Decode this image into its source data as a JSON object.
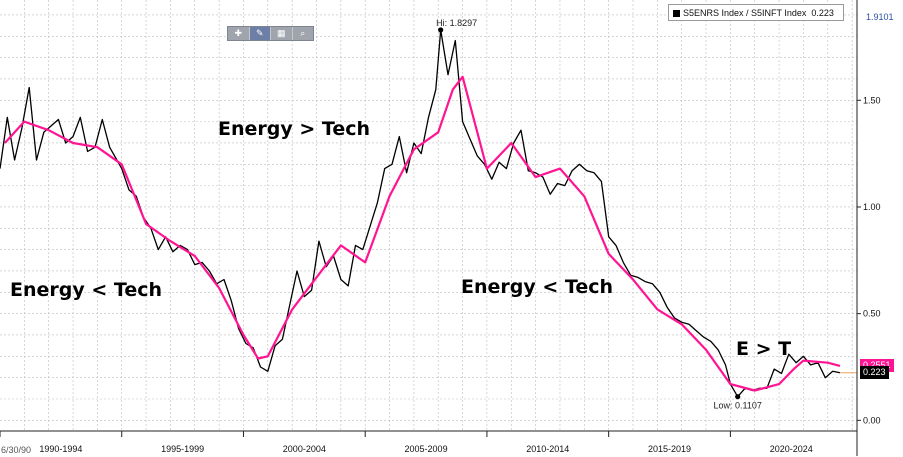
{
  "legend": {
    "label": "S5ENRS Index / S5INFT Index",
    "value": "0.223"
  },
  "toolbar": {
    "icons": [
      "crosshair-icon",
      "pen-icon",
      "grid-icon",
      "zoom-icon"
    ]
  },
  "annotations": {
    "top_left": "Energy > Tech",
    "left": "Energy < Tech",
    "right": "Energy < Tech",
    "recent": "E > T",
    "hi": "Hi: 1.8297",
    "low": "Low: 0.1107"
  },
  "tags": {
    "top": "1.9101",
    "ma": "0.2551",
    "last": "0.223"
  },
  "date_stub": "6/30/90",
  "colors": {
    "ratio": "#000000",
    "moving_average": "#ff1493",
    "last_line": "#f4a460",
    "top_tag": "#2b4f9e"
  },
  "chart_data": {
    "type": "line",
    "x_tick_labels": [
      "1990-1994",
      "1995-1999",
      "2000-2004",
      "2005-2009",
      "2010-2014",
      "2015-2019",
      "2020-2024"
    ],
    "y_tick_labels": [
      "0.00",
      "0.50",
      "1.00",
      "1.50"
    ],
    "xlim": [
      1990.0,
      2025.2
    ],
    "ylim": [
      -0.05,
      1.97
    ],
    "grid": true,
    "y_axis_side": "right",
    "series": [
      {
        "name": "S5ENRS Index / S5INFT Index",
        "x": [
          1990.0,
          1990.3,
          1990.6,
          1990.9,
          1991.2,
          1991.5,
          1991.8,
          1992.1,
          1992.4,
          1992.7,
          1993.0,
          1993.3,
          1993.6,
          1993.9,
          1994.2,
          1994.5,
          1994.8,
          1995.0,
          1995.3,
          1995.6,
          1995.9,
          1996.2,
          1996.5,
          1996.8,
          1997.1,
          1997.4,
          1997.7,
          1998.0,
          1998.3,
          1998.6,
          1998.9,
          1999.2,
          1999.5,
          1999.8,
          2000.1,
          2000.4,
          2000.7,
          2001.0,
          2001.3,
          2001.6,
          2001.9,
          2002.2,
          2002.5,
          2002.8,
          2003.1,
          2003.4,
          2003.7,
          2004.0,
          2004.3,
          2004.6,
          2004.9,
          2005.2,
          2005.5,
          2005.8,
          2006.1,
          2006.4,
          2006.7,
          2007.0,
          2007.3,
          2007.6,
          2007.9,
          2008.1,
          2008.4,
          2008.7,
          2009.0,
          2009.3,
          2009.6,
          2009.9,
          2010.2,
          2010.5,
          2010.8,
          2011.1,
          2011.4,
          2011.7,
          2012.0,
          2012.3,
          2012.6,
          2012.9,
          2013.2,
          2013.5,
          2013.8,
          2014.1,
          2014.4,
          2014.7,
          2015.0,
          2015.3,
          2015.6,
          2015.9,
          2016.2,
          2016.5,
          2016.8,
          2017.1,
          2017.4,
          2017.7,
          2018.0,
          2018.3,
          2018.6,
          2018.9,
          2019.2,
          2019.5,
          2019.8,
          2020.0,
          2020.3,
          2020.6,
          2020.9,
          2021.2,
          2021.5,
          2021.8,
          2022.1,
          2022.4,
          2022.7,
          2023.0,
          2023.3,
          2023.6,
          2023.9,
          2024.2,
          2024.5
        ],
        "values": [
          1.18,
          1.42,
          1.22,
          1.37,
          1.56,
          1.22,
          1.35,
          1.38,
          1.41,
          1.3,
          1.33,
          1.42,
          1.26,
          1.28,
          1.41,
          1.28,
          1.22,
          1.18,
          1.08,
          1.05,
          0.95,
          0.9,
          0.8,
          0.86,
          0.79,
          0.82,
          0.8,
          0.73,
          0.74,
          0.7,
          0.64,
          0.66,
          0.56,
          0.43,
          0.36,
          0.34,
          0.25,
          0.23,
          0.35,
          0.38,
          0.54,
          0.7,
          0.58,
          0.61,
          0.84,
          0.72,
          0.77,
          0.66,
          0.63,
          0.82,
          0.8,
          0.91,
          1.02,
          1.18,
          1.2,
          1.33,
          1.16,
          1.3,
          1.25,
          1.42,
          1.55,
          1.83,
          1.62,
          1.78,
          1.4,
          1.32,
          1.24,
          1.2,
          1.13,
          1.21,
          1.18,
          1.3,
          1.36,
          1.17,
          1.16,
          1.14,
          1.06,
          1.11,
          1.1,
          1.17,
          1.2,
          1.17,
          1.16,
          1.12,
          0.86,
          0.82,
          0.74,
          0.68,
          0.67,
          0.65,
          0.64,
          0.6,
          0.53,
          0.48,
          0.46,
          0.45,
          0.42,
          0.39,
          0.37,
          0.33,
          0.26,
          0.17,
          0.1107,
          0.15,
          0.14,
          0.15,
          0.15,
          0.24,
          0.22,
          0.31,
          0.27,
          0.3,
          0.26,
          0.27,
          0.2,
          0.23,
          0.223
        ]
      },
      {
        "name": "moving average",
        "x": [
          1990.2,
          1991.0,
          1992.0,
          1993.0,
          1994.0,
          1995.0,
          1996.0,
          1997.0,
          1998.0,
          1999.0,
          2000.0,
          2000.6,
          2001.0,
          2002.0,
          2003.0,
          2004.0,
          2005.0,
          2006.0,
          2007.0,
          2008.0,
          2008.6,
          2009.0,
          2010.0,
          2011.0,
          2012.0,
          2013.0,
          2014.0,
          2015.0,
          2016.0,
          2017.0,
          2018.0,
          2019.0,
          2020.0,
          2021.0,
          2022.0,
          2022.6,
          2023.0,
          2024.0,
          2024.5
        ],
        "values": [
          1.3,
          1.4,
          1.36,
          1.3,
          1.28,
          1.2,
          0.92,
          0.84,
          0.77,
          0.62,
          0.4,
          0.29,
          0.3,
          0.52,
          0.67,
          0.82,
          0.74,
          1.05,
          1.27,
          1.35,
          1.55,
          1.61,
          1.18,
          1.3,
          1.14,
          1.18,
          1.05,
          0.78,
          0.66,
          0.52,
          0.45,
          0.33,
          0.17,
          0.14,
          0.17,
          0.24,
          0.28,
          0.27,
          0.2551
        ]
      }
    ],
    "markers": [
      {
        "label": "Hi: 1.8297",
        "x": 2008.1,
        "y": 1.8297
      },
      {
        "label": "Low: 0.1107",
        "x": 2020.3,
        "y": 0.1107
      }
    ]
  }
}
